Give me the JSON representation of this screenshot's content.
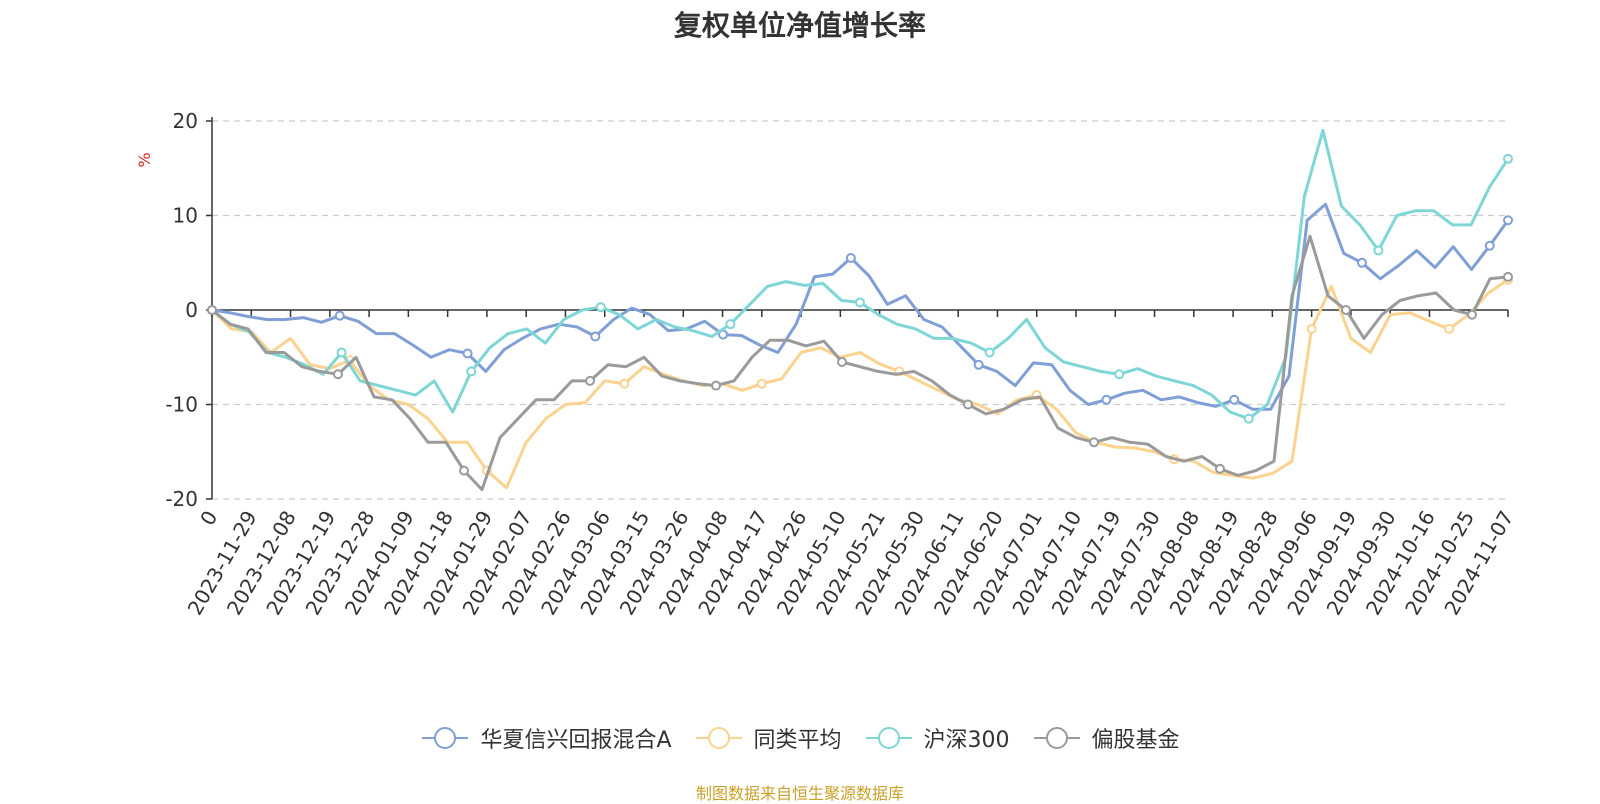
{
  "source_note": "制图数据来自恒生聚源数据库",
  "colors": {
    "source": "#c8a02a",
    "axis": "#333333",
    "grid": "#cccccc",
    "yunit": "#e02020"
  },
  "chart_data": {
    "type": "line",
    "title": "复权单位净值增长率",
    "ylabel": "%",
    "ylim": [
      -20,
      20
    ],
    "yticks": [
      -20,
      -10,
      0,
      10,
      20
    ],
    "grid": true,
    "legend_position": "bottom",
    "xtick_labels": [
      "0",
      "2023-11-29",
      "2023-12-08",
      "2023-12-19",
      "2023-12-28",
      "2024-01-09",
      "2024-01-18",
      "2024-01-29",
      "2024-02-07",
      "2024-02-26",
      "2024-03-06",
      "2024-03-15",
      "2024-03-26",
      "2024-04-08",
      "2024-04-17",
      "2024-04-26",
      "2024-05-10",
      "2024-05-21",
      "2024-05-30",
      "2024-06-11",
      "2024-06-20",
      "2024-07-01",
      "2024-07-10",
      "2024-07-19",
      "2024-07-30",
      "2024-08-08",
      "2024-08-19",
      "2024-08-28",
      "2024-09-06",
      "2024-09-19",
      "2024-09-30",
      "2024-10-16",
      "2024-10-25",
      "2024-11-07"
    ],
    "series": [
      {
        "name": "华夏信兴回报混合A",
        "color": "#7f9fd6",
        "values": [
          0,
          -0.3,
          -0.7,
          -1,
          -1,
          -0.8,
          -1.3,
          -0.6,
          -1.2,
          -2.5,
          -2.5,
          -3.7,
          -5,
          -4.2,
          -4.6,
          -6.5,
          -4.2,
          -3,
          -2,
          -1.5,
          -1.8,
          -2.8,
          -1,
          0.2,
          -0.5,
          -2.2,
          -2,
          -1.2,
          -2.6,
          -2.7,
          -3.7,
          -4.5,
          -1.5,
          3.5,
          3.8,
          5.5,
          3.6,
          0.6,
          1.5,
          -1,
          -1.8,
          -3.8,
          -5.8,
          -6.5,
          -8,
          -5.6,
          -5.8,
          -8.5,
          -10,
          -9.5,
          -8.8,
          -8.5,
          -9.5,
          -9.2,
          -9.8,
          -10.2,
          -9.5,
          -10.5,
          -10.5,
          -7,
          9.5,
          11.2,
          6,
          5,
          3.3,
          4.7,
          6.3,
          4.5,
          6.7,
          4.3,
          6.8,
          9.5
        ]
      },
      {
        "name": "同类平均",
        "color": "#fbd38f",
        "values": [
          0,
          -2,
          -2.3,
          -4.5,
          -3,
          -5.8,
          -6.2,
          -5.3,
          -8,
          -9.5,
          -10,
          -11.5,
          -14,
          -14,
          -17,
          -18.8,
          -14,
          -11.5,
          -10,
          -9.8,
          -7.5,
          -7.8,
          -6,
          -6.8,
          -7.5,
          -8,
          -7.8,
          -8.5,
          -7.8,
          -7.3,
          -4.5,
          -4,
          -5,
          -4.5,
          -5.7,
          -6.5,
          -7.5,
          -8.5,
          -9.5,
          -10,
          -11,
          -9.5,
          -9,
          -10.5,
          -13,
          -14,
          -14.5,
          -14.6,
          -15,
          -15.8,
          -16,
          -17.2,
          -17.5,
          -17.8,
          -17.3,
          -16,
          -2,
          2.5,
          -3,
          -4.5,
          -0.5,
          -0.3,
          -1.2,
          -2,
          -0.5,
          1.8,
          3.2
        ]
      },
      {
        "name": "沪深300",
        "color": "#7ed6d6",
        "values": [
          0,
          -1.5,
          -2.3,
          -4.5,
          -5,
          -5.8,
          -6.8,
          -4.5,
          -7.5,
          -8,
          -8.5,
          -9,
          -7.5,
          -10.8,
          -6.5,
          -4,
          -2.5,
          -2,
          -3.5,
          -1,
          0,
          0.3,
          -0.5,
          -2,
          -1,
          -1.8,
          -2.2,
          -2.8,
          -1.5,
          0.5,
          2.5,
          3,
          2.6,
          2.8,
          1,
          0.8,
          -0.5,
          -1.5,
          -2,
          -3,
          -3,
          -3.5,
          -4.5,
          -3,
          -1,
          -4,
          -5.5,
          -6,
          -6.5,
          -6.8,
          -6.2,
          -7,
          -7.5,
          -8,
          -9,
          -10.8,
          -11.5,
          -10,
          -5,
          12,
          19,
          11,
          9,
          6.3,
          10,
          10.5,
          10.5,
          9,
          9,
          13,
          16
        ]
      },
      {
        "name": "偏股基金",
        "color": "#9a9a9a",
        "values": [
          0,
          -1.5,
          -2,
          -4.5,
          -4.5,
          -6,
          -6.5,
          -6.8,
          -5,
          -9.2,
          -9.5,
          -11.5,
          -14,
          -14,
          -17,
          -19,
          -13.5,
          -11.5,
          -9.5,
          -9.5,
          -7.5,
          -7.5,
          -5.8,
          -6,
          -5,
          -7,
          -7.5,
          -7.8,
          -8,
          -7.5,
          -5,
          -3.2,
          -3.2,
          -3.8,
          -3.3,
          -5.5,
          -6,
          -6.5,
          -6.8,
          -6.5,
          -7.5,
          -9,
          -10,
          -11,
          -10.5,
          -9.5,
          -9.2,
          -12.5,
          -13.5,
          -14,
          -13.5,
          -14,
          -14.2,
          -15.5,
          -16,
          -15.5,
          -16.8,
          -17.5,
          -17,
          -16,
          1.5,
          7.8,
          1.5,
          0,
          -3,
          -0.5,
          1,
          1.5,
          1.8,
          0,
          -0.5,
          3.3,
          3.5
        ]
      }
    ]
  }
}
